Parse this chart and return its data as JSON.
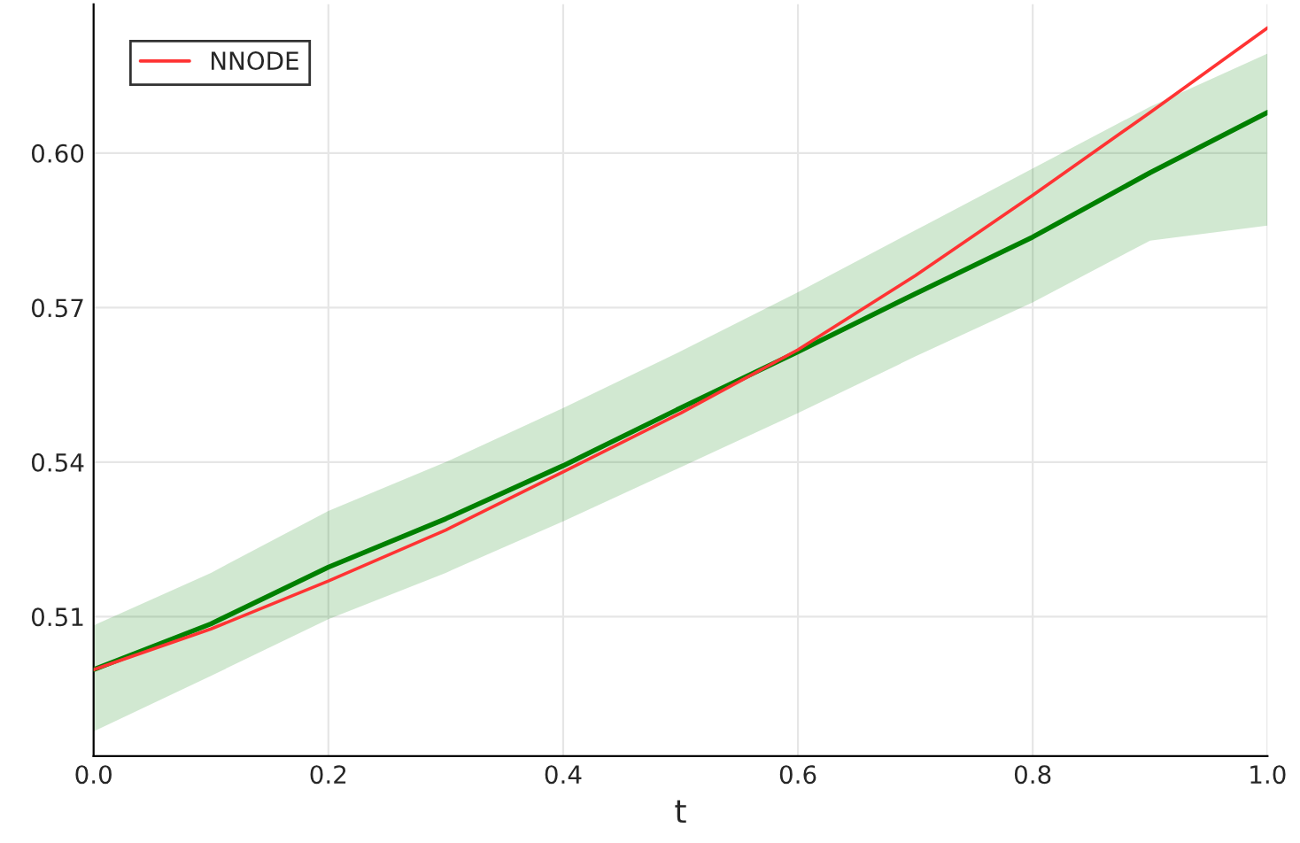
{
  "chart_data": {
    "type": "line",
    "xlabel": "t",
    "x": [
      0.0,
      0.1,
      0.2,
      0.3,
      0.4,
      0.5,
      0.6,
      0.7,
      0.8,
      0.9,
      1.0
    ],
    "series": [
      {
        "color": "#008000",
        "values": [
          0.4997,
          0.5086,
          0.5196,
          0.529,
          0.5393,
          0.5505,
          0.5614,
          0.5727,
          0.5837,
          0.5962,
          0.6079
        ],
        "lower": [
          0.4877,
          0.4985,
          0.5095,
          0.5185,
          0.5285,
          0.539,
          0.5495,
          0.5605,
          0.571,
          0.583,
          0.5859
        ],
        "upper": [
          0.5083,
          0.5185,
          0.5305,
          0.54,
          0.5505,
          0.5615,
          0.573,
          0.585,
          0.597,
          0.609,
          0.6193
        ]
      },
      {
        "name": "NNODE",
        "color": "#ff3333",
        "values": [
          0.4997,
          0.5076,
          0.5169,
          0.5268,
          0.5381,
          0.5495,
          0.5618,
          0.5762,
          0.5918,
          0.6079,
          0.6243
        ]
      }
    ],
    "xlim": [
      0,
      1
    ],
    "xticks": [
      {
        "value": 0,
        "label": "0.0"
      },
      {
        "value": 0.2,
        "label": "0.2"
      },
      {
        "value": 0.4,
        "label": "0.4"
      },
      {
        "value": 0.6,
        "label": "0.6"
      },
      {
        "value": 0.8,
        "label": "0.8"
      },
      {
        "value": 1,
        "label": "1.0"
      }
    ],
    "ylim": [
      0.4829,
      0.6289
    ],
    "yticks": [
      {
        "value": 0.51,
        "label": "0.51"
      },
      {
        "value": 0.54,
        "label": "0.54"
      },
      {
        "value": 0.57,
        "label": "0.57"
      },
      {
        "value": 0.6,
        "label": "0.60"
      }
    ],
    "grid": true,
    "legend": "top left"
  }
}
